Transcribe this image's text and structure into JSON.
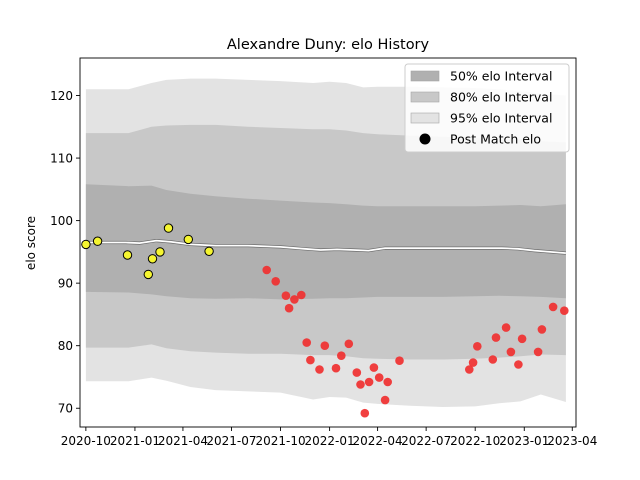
{
  "chart_data": {
    "type": "line",
    "title": "Alexandre Duny: elo History",
    "xlabel": "",
    "ylabel": "elo score",
    "xlim": [
      "2020-09-20",
      "2023-04-08"
    ],
    "ylim": [
      67,
      126
    ],
    "x_ticks": [
      {
        "date": "2020-10-01",
        "label": "2020-10"
      },
      {
        "date": "2021-01-01",
        "label": "2021-01"
      },
      {
        "date": "2021-04-01",
        "label": "2021-04"
      },
      {
        "date": "2021-07-01",
        "label": "2021-07"
      },
      {
        "date": "2021-10-01",
        "label": "2021-10"
      },
      {
        "date": "2022-01-01",
        "label": "2022-01"
      },
      {
        "date": "2022-04-01",
        "label": "2022-04"
      },
      {
        "date": "2022-07-01",
        "label": "2022-07"
      },
      {
        "date": "2022-10-01",
        "label": "2022-10"
      },
      {
        "date": "2023-01-01",
        "label": "2023-01"
      },
      {
        "date": "2023-04-01",
        "label": "2023-04"
      }
    ],
    "y_ticks": [
      70,
      80,
      90,
      100,
      110,
      120
    ],
    "grid": false,
    "legend": {
      "placement": "upper right",
      "entries": [
        {
          "label": "50% elo Interval",
          "kind": "band",
          "color": "#b0b0b0"
        },
        {
          "label": "80% elo Interval",
          "kind": "band",
          "color": "#c8c8c8"
        },
        {
          "label": "95% elo Interval",
          "kind": "band",
          "color": "#e3e3e3"
        },
        {
          "label": "Post Match elo",
          "kind": "marker",
          "color": "#000000"
        }
      ]
    },
    "bands": [
      {
        "name": "95% elo Interval",
        "color": "#e3e3e3",
        "x": [
          "2020-10-01",
          "2020-12-20",
          "2021-02-01",
          "2021-03-01",
          "2021-04-15",
          "2021-06-01",
          "2021-08-01",
          "2021-10-01",
          "2021-12-01",
          "2022-01-01",
          "2022-02-01",
          "2022-03-05",
          "2022-04-01",
          "2022-06-01",
          "2022-08-01",
          "2022-10-01",
          "2022-11-15",
          "2022-12-25",
          "2023-02-01",
          "2023-03-20"
        ],
        "upper": [
          121,
          121,
          122,
          122.5,
          122.7,
          122.7,
          122.5,
          122.3,
          122,
          122.2,
          122,
          121.3,
          121.4,
          121.4,
          121.3,
          121.2,
          121,
          120.7,
          120.3,
          120
        ],
        "lower": [
          74.3,
          74.3,
          74.9,
          74.4,
          73.4,
          72.9,
          72.7,
          72.5,
          71.4,
          71.8,
          71.7,
          70.9,
          70.7,
          70.4,
          70.2,
          70.3,
          70.8,
          71.1,
          72.2,
          71
        ]
      },
      {
        "name": "80% elo Interval",
        "color": "#c8c8c8",
        "x": [
          "2020-10-01",
          "2020-12-20",
          "2021-02-01",
          "2021-03-01",
          "2021-04-15",
          "2021-06-01",
          "2021-08-01",
          "2021-10-01",
          "2021-12-01",
          "2022-01-01",
          "2022-02-01",
          "2022-03-05",
          "2022-04-01",
          "2022-06-01",
          "2022-08-01",
          "2022-10-01",
          "2022-11-15",
          "2022-12-25",
          "2023-02-01",
          "2023-03-20"
        ],
        "upper": [
          114,
          114,
          115,
          115.2,
          115.3,
          115.3,
          115,
          114.8,
          114.6,
          114.6,
          114.4,
          114,
          113.8,
          113.6,
          113.4,
          113.2,
          113.1,
          113,
          112.7,
          112.5
        ],
        "lower": [
          79.7,
          79.7,
          80.2,
          79.6,
          79.1,
          78.9,
          78.7,
          78.7,
          78.5,
          78.5,
          78.3,
          78,
          77.9,
          77.8,
          77.8,
          77.9,
          78.1,
          78.3,
          78.6,
          78.5
        ]
      },
      {
        "name": "50% elo Interval",
        "color": "#b0b0b0",
        "x": [
          "2020-10-01",
          "2020-12-20",
          "2021-02-01",
          "2021-03-01",
          "2021-04-15",
          "2021-06-01",
          "2021-08-01",
          "2021-10-01",
          "2021-12-01",
          "2022-01-01",
          "2022-02-01",
          "2022-03-05",
          "2022-04-01",
          "2022-06-01",
          "2022-08-01",
          "2022-10-01",
          "2022-11-15",
          "2022-12-25",
          "2023-02-01",
          "2023-03-20"
        ],
        "upper": [
          105.8,
          105.5,
          105.6,
          104.9,
          104.3,
          103.9,
          103.5,
          103.2,
          102.9,
          102.8,
          102.6,
          102.4,
          102.3,
          102.3,
          102.3,
          102.3,
          102.4,
          102.5,
          102.3,
          102.6
        ],
        "lower": [
          88.6,
          88.5,
          88.2,
          87.9,
          87.6,
          87.5,
          87.6,
          87.4,
          87.5,
          87.6,
          87.6,
          87.7,
          87.8,
          87.8,
          87.8,
          87.9,
          88,
          87.9,
          87.8,
          87.6
        ]
      }
    ],
    "mean_line": {
      "color": "#ffffff",
      "x": [
        "2020-10-01",
        "2020-11-01",
        "2020-12-15",
        "2021-01-10",
        "2021-02-10",
        "2021-03-10",
        "2021-04-15",
        "2021-06-01",
        "2021-08-01",
        "2021-10-01",
        "2021-11-15",
        "2021-12-15",
        "2022-01-15",
        "2022-02-15",
        "2022-03-15",
        "2022-04-15",
        "2022-06-01",
        "2022-08-01",
        "2022-10-01",
        "2022-11-20",
        "2022-12-20",
        "2023-01-20",
        "2023-03-20"
      ],
      "y": [
        96.5,
        96.5,
        96.5,
        96.4,
        96.8,
        96.6,
        96.2,
        96,
        96,
        95.8,
        95.5,
        95.3,
        95.4,
        95.3,
        95.2,
        95.6,
        95.6,
        95.6,
        95.6,
        95.6,
        95.5,
        95.2,
        94.8
      ]
    },
    "series": [
      {
        "name": "Post Match elo",
        "color": "#f5f531",
        "x": [
          "2020-10-01",
          "2020-10-23",
          "2020-12-18",
          "2021-01-26",
          "2021-02-03",
          "2021-02-17",
          "2021-03-05",
          "2021-04-11",
          "2021-05-20"
        ],
        "y": [
          96.2,
          96.7,
          94.5,
          91.4,
          93.9,
          95,
          98.8,
          97,
          95.1
        ]
      },
      {
        "name": "",
        "color": "#f03030",
        "x": [
          "2021-09-05",
          "2021-09-22",
          "2021-10-11",
          "2021-10-17",
          "2021-10-27",
          "2021-11-09",
          "2021-11-19",
          "2021-11-26",
          "2021-12-13",
          "2021-12-23",
          "2022-01-13",
          "2022-01-23",
          "2022-02-06",
          "2022-02-21",
          "2022-02-28",
          "2022-03-08",
          "2022-03-16",
          "2022-03-25",
          "2022-04-04",
          "2022-04-15",
          "2022-04-20",
          "2022-05-12",
          "2022-09-20",
          "2022-09-27",
          "2022-10-05",
          "2022-11-03",
          "2022-11-09",
          "2022-11-28",
          "2022-12-07",
          "2022-12-21",
          "2022-12-28",
          "2023-01-27",
          "2023-02-03",
          "2023-02-24",
          "2023-03-17"
        ],
        "y": [
          92.1,
          90.3,
          88,
          86,
          87.4,
          88.1,
          80.5,
          77.7,
          76.2,
          80,
          76.4,
          78.4,
          80.3,
          75.7,
          73.8,
          69.2,
          74.2,
          76.5,
          74.9,
          71.3,
          74.2,
          77.6,
          76.2,
          77.3,
          79.9,
          77.8,
          81.3,
          82.9,
          79,
          77,
          81.1,
          79,
          82.6,
          86.2,
          85.6
        ]
      }
    ]
  }
}
